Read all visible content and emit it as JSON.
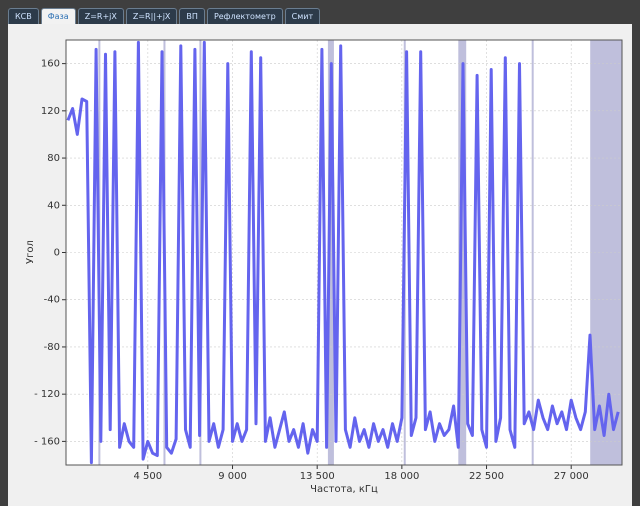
{
  "tabs": [
    {
      "label": "КСВ"
    },
    {
      "label": "Фаза",
      "active": true
    },
    {
      "label": "Z=R+jX"
    },
    {
      "label": "Z=R||+jX"
    },
    {
      "label": "ВП"
    },
    {
      "label": "Рефлектометр"
    },
    {
      "label": "Смит"
    }
  ],
  "chart_data": {
    "type": "line",
    "x_label": "Частота, кГц",
    "y_label": "Угол",
    "xlim": [
      150,
      29700
    ],
    "ylim": [
      -180,
      180
    ],
    "xticks": [
      {
        "value": 4500,
        "label": "4 500"
      },
      {
        "value": 9000,
        "label": "9 000"
      },
      {
        "value": 13500,
        "label": "13 500"
      },
      {
        "value": 18000,
        "label": "18 000"
      },
      {
        "value": 22500,
        "label": "22 500"
      },
      {
        "value": 27000,
        "label": "27 000"
      }
    ],
    "yticks": [
      {
        "value": -160,
        "label": "- 160"
      },
      {
        "value": -120,
        "label": "- 120"
      },
      -80,
      -40,
      0,
      40,
      80,
      120,
      160
    ],
    "grid": true,
    "band_color": "#8a8ac0",
    "bands": [
      [
        1870,
        1920
      ],
      [
        5330,
        5380
      ],
      [
        7240,
        7290
      ],
      [
        14070,
        14390
      ],
      [
        18100,
        18150
      ],
      [
        21000,
        21420
      ],
      [
        24900,
        24950
      ],
      [
        28010,
        29710
      ]
    ],
    "series": [
      {
        "name": "Фаза",
        "color": "#6464ee",
        "x": [
          250,
          500,
          750,
          1000,
          1250,
          1500,
          1750,
          2000,
          2250,
          2500,
          2750,
          3000,
          3250,
          3500,
          3750,
          4000,
          4250,
          4500,
          4750,
          5000,
          5250,
          5500,
          5750,
          6000,
          6250,
          6500,
          6750,
          7000,
          7250,
          7500,
          7750,
          8000,
          8250,
          8500,
          8750,
          9000,
          9250,
          9500,
          9750,
          10000,
          10250,
          10500,
          10750,
          11000,
          11250,
          11500,
          11750,
          12000,
          12250,
          12500,
          12750,
          13000,
          13250,
          13500,
          13750,
          14000,
          14250,
          14500,
          14750,
          15000,
          15250,
          15500,
          15750,
          16000,
          16250,
          16500,
          16750,
          17000,
          17250,
          17500,
          17750,
          18000,
          18250,
          18500,
          18750,
          19000,
          19250,
          19500,
          19750,
          20000,
          20250,
          20500,
          20750,
          21000,
          21250,
          21500,
          21750,
          22000,
          22250,
          22500,
          22750,
          23000,
          23250,
          23500,
          23750,
          24000,
          24250,
          24500,
          24750,
          25000,
          25250,
          25500,
          25750,
          26000,
          26250,
          26500,
          26750,
          27000,
          27250,
          27500,
          27750,
          28000,
          28250,
          28500,
          28750,
          29000,
          29250,
          29500
        ],
        "values": [
          112,
          122,
          100,
          130,
          128,
          -178,
          172,
          -160,
          168,
          -150,
          170,
          -165,
          -145,
          -160,
          -165,
          178,
          -175,
          -160,
          -170,
          -172,
          170,
          -165,
          -170,
          -158,
          175,
          -150,
          -165,
          172,
          -155,
          178,
          -160,
          -145,
          -165,
          -150,
          160,
          -160,
          -145,
          -160,
          -150,
          170,
          -145,
          165,
          -160,
          -140,
          -165,
          -150,
          -135,
          -160,
          -150,
          -165,
          -145,
          -170,
          -150,
          -160,
          172,
          -165,
          160,
          -160,
          175,
          -150,
          -165,
          -140,
          -160,
          -150,
          -165,
          -145,
          -160,
          -150,
          -165,
          -145,
          -160,
          -140,
          170,
          -155,
          -140,
          170,
          -150,
          -135,
          -160,
          -145,
          -155,
          -150,
          -130,
          -165,
          160,
          -145,
          -155,
          150,
          -150,
          -165,
          155,
          -160,
          -140,
          165,
          -150,
          -165,
          160,
          -145,
          -135,
          -150,
          -125,
          -140,
          -150,
          -130,
          -145,
          -135,
          -150,
          -125,
          -140,
          -150,
          -135,
          -70,
          -150,
          -130,
          -155,
          -120,
          -150,
          -135
        ]
      }
    ]
  }
}
